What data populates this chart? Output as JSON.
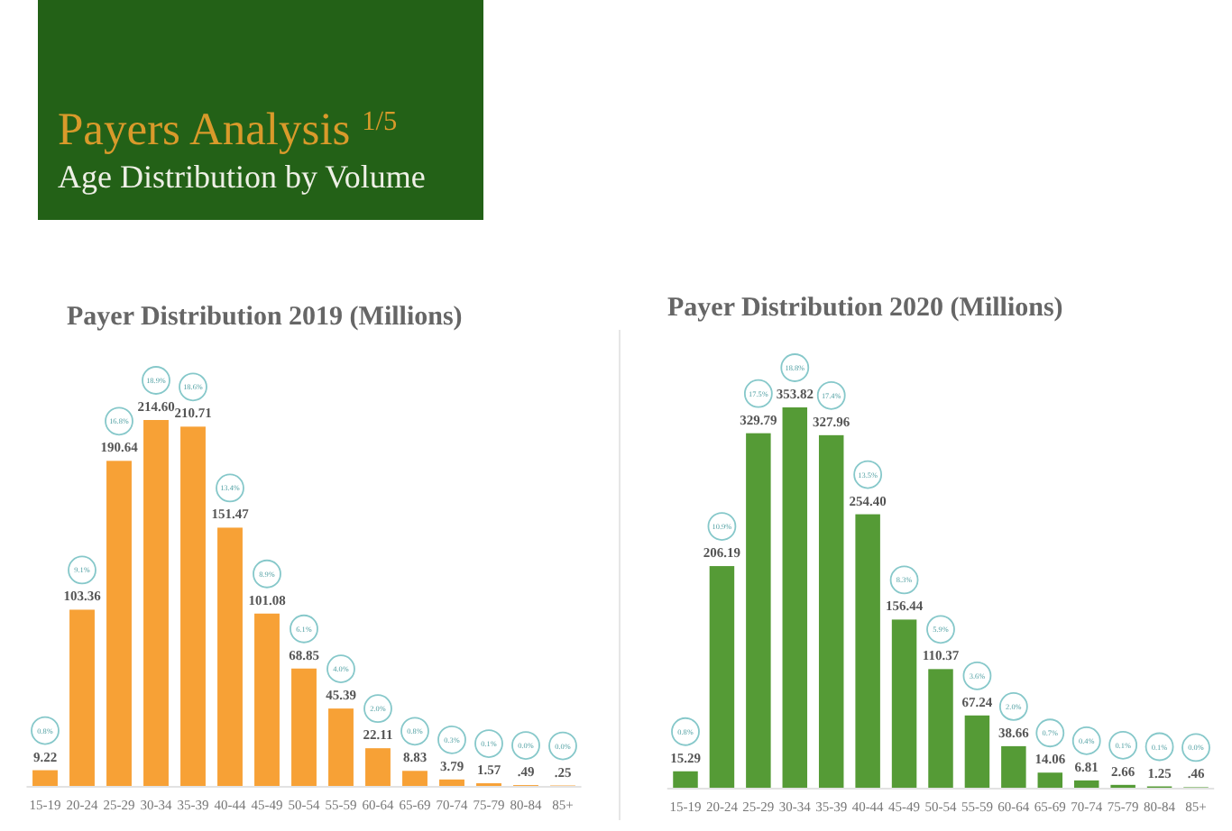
{
  "chart_data": [
    {
      "type": "other",
      "title": "Payers Analysis $^{1/5}$",
      "subtitle": "Age Distribution by Volume"
    },
    {
      "type": "bar",
      "title": "Payer Distribution 2019 (Millions)",
      "categories": [
        "15-19",
        "20-24",
        "25-29",
        "30-34",
        "35-39",
        "40-44",
        "45-49",
        "50-54",
        "55-59",
        "60-64",
        "65-69",
        "70-74",
        "75-79",
        "80-84",
        "85+"
      ],
      "values": [
        9.22,
        103.36,
        190.64,
        214.6,
        210.71,
        151.47,
        101.08,
        68.85,
        45.39,
        22.11,
        8.83,
        3.79,
        1.57,
        0.49,
        0.25
      ],
      "color": "#f7a136",
      "value_labels": [
        "9.22",
        "103.36",
        "190.64",
        "214.60",
        "210.71",
        "151.47",
        "101.08",
        "68.85",
        "45.39",
        "22.11",
        "8.83",
        "3.79",
        "1.57",
        ".49",
        ".25"
      ],
      "annotations": [
        "0.8%",
        "9.1%",
        "16.8%",
        "18.9%",
        "18.6%",
        "13.4%",
        "8.9%",
        "6.1%",
        "4.0%",
        "2.0%",
        "0.8%",
        "0.3%",
        "0.1%",
        "0.0%",
        "0.0%"
      ]
    },
    {
      "type": "bar",
      "title": "Payer Distribution 2020 (Millions)",
      "categories": [
        "15-19",
        "20-24",
        "25-29",
        "30-34",
        "35-39",
        "40-44",
        "45-49",
        "50-54",
        "55-59",
        "60-64",
        "65-69",
        "70-74",
        "75-79",
        "80-84",
        "85+"
      ],
      "values": [
        15.29,
        206.19,
        329.79,
        353.82,
        327.96,
        254.4,
        156.44,
        110.37,
        67.24,
        38.66,
        14.06,
        6.81,
        2.66,
        1.25,
        0.46
      ],
      "color": "#559b36",
      "value_labels": [
        "15.29",
        "206.19",
        "329.79",
        "353.82",
        "327.96",
        "254.40",
        "156.44",
        "110.37",
        "67.24",
        "38.66",
        "14.06",
        "6.81",
        "2.66",
        "1.25",
        ".46"
      ],
      "annotations": [
        "0.8%",
        "10.9%",
        "17.5%",
        "18.8%",
        "17.4%",
        "13.5%",
        "8.3%",
        "5.9%",
        "3.6%",
        "2.0%",
        "0.7%",
        "0.4%",
        "0.1%",
        "0.1%",
        "0.0%"
      ]
    }
  ]
}
